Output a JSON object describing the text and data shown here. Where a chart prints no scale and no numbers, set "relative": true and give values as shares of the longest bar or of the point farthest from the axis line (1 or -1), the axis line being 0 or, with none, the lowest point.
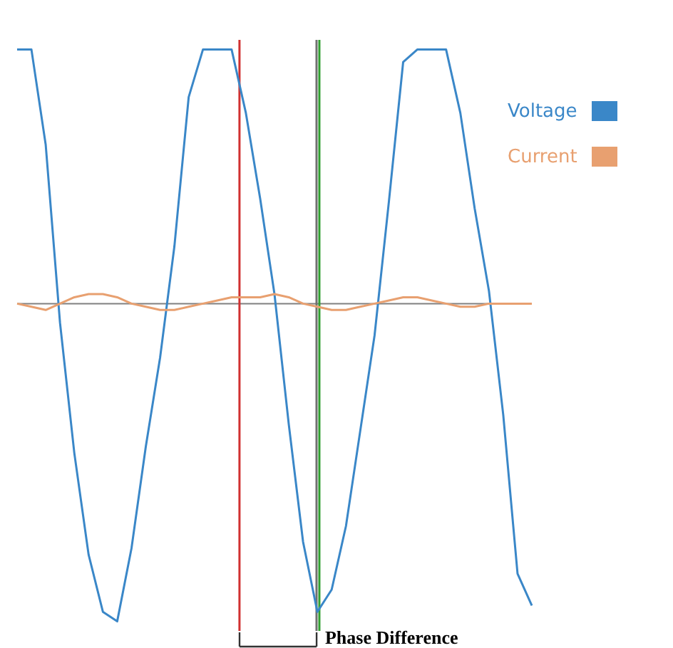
{
  "chart_data": {
    "type": "line",
    "relative": true,
    "grid": false,
    "legend": "right",
    "marker": "none",
    "line_style": "solid",
    "categories": [
      null,
      null,
      null,
      null,
      null,
      null,
      null,
      null,
      null,
      null,
      null,
      null,
      null,
      null,
      null,
      null,
      null,
      null,
      null,
      null,
      null,
      null,
      null,
      null,
      null,
      null,
      null,
      null,
      null,
      null,
      null,
      null,
      null,
      null,
      null,
      null,
      null
    ],
    "series": [
      {
        "name": "Voltage",
        "color": "#3a87c8",
        "values": [
          0.8,
          0.8,
          0.5,
          -0.06,
          -0.47,
          -0.79,
          -0.97,
          -1,
          -0.77,
          -0.45,
          -0.17,
          0.18,
          0.65,
          0.8,
          0.8,
          0.8,
          0.6,
          0.33,
          0.03,
          -0.38,
          -0.75,
          -0.97,
          -0.9,
          -0.7,
          -0.4,
          -0.1,
          0.32,
          0.76,
          0.8,
          0.8,
          0.8,
          0.6,
          0.3,
          0.04,
          -0.35,
          -0.85,
          -0.95
        ]
      },
      {
        "name": "Current",
        "color": "#e8a070",
        "values": [
          0,
          -0.01,
          -0.02,
          0,
          0.02,
          0.03,
          0.03,
          0.02,
          0,
          -0.01,
          -0.02,
          -0.02,
          -0.01,
          0,
          0.01,
          0.02,
          0.02,
          0.02,
          0.03,
          0.02,
          0,
          -0.01,
          -0.02,
          -0.02,
          -0.01,
          0,
          0.01,
          0.02,
          0.02,
          0.01,
          0,
          -0.01,
          -0.01,
          0,
          0,
          0,
          0
        ]
      }
    ],
    "annotations": [
      "Phase Difference"
    ]
  }
}
